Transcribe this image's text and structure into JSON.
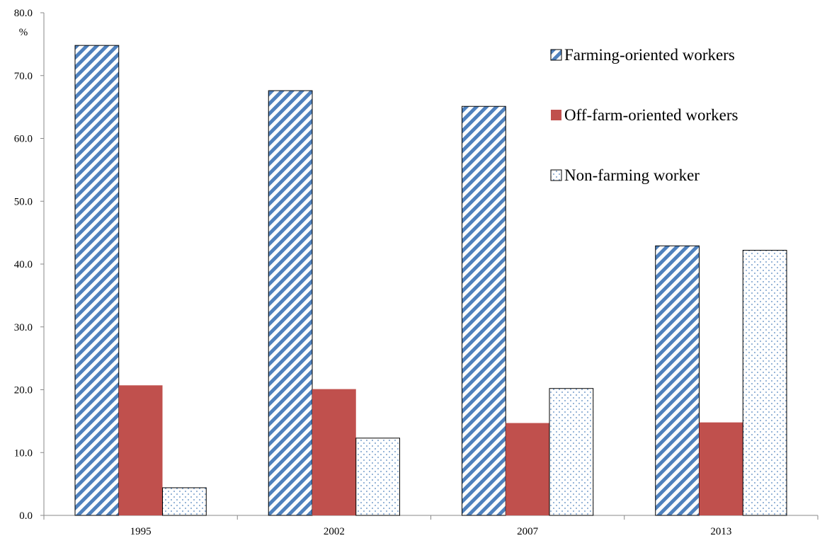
{
  "chart_data": {
    "type": "bar",
    "title": "",
    "xlabel": "",
    "ylabel": "",
    "y_unit": "%",
    "categories": [
      "1995",
      "2002",
      "2007",
      "2013"
    ],
    "ylim": [
      0,
      80
    ],
    "yticks": [
      "0.0",
      "10.0",
      "20.0",
      "30.0",
      "40.0",
      "50.0",
      "60.0",
      "70.0",
      "80.0"
    ],
    "grid": false,
    "legend_position": "top-right",
    "series": [
      {
        "name": "Farming-oriented workers",
        "values": [
          74.8,
          67.6,
          65.1,
          42.9
        ],
        "color": "#4f81bd",
        "pattern": "diagonal-stripes"
      },
      {
        "name": "Off-farm-oriented workers",
        "values": [
          20.7,
          20.1,
          14.7,
          14.8
        ],
        "color": "#c0504d",
        "pattern": "solid"
      },
      {
        "name": "Non-farming worker",
        "values": [
          4.4,
          12.3,
          20.2,
          42.2
        ],
        "color": "#4f81bd",
        "pattern": "dots"
      }
    ]
  }
}
